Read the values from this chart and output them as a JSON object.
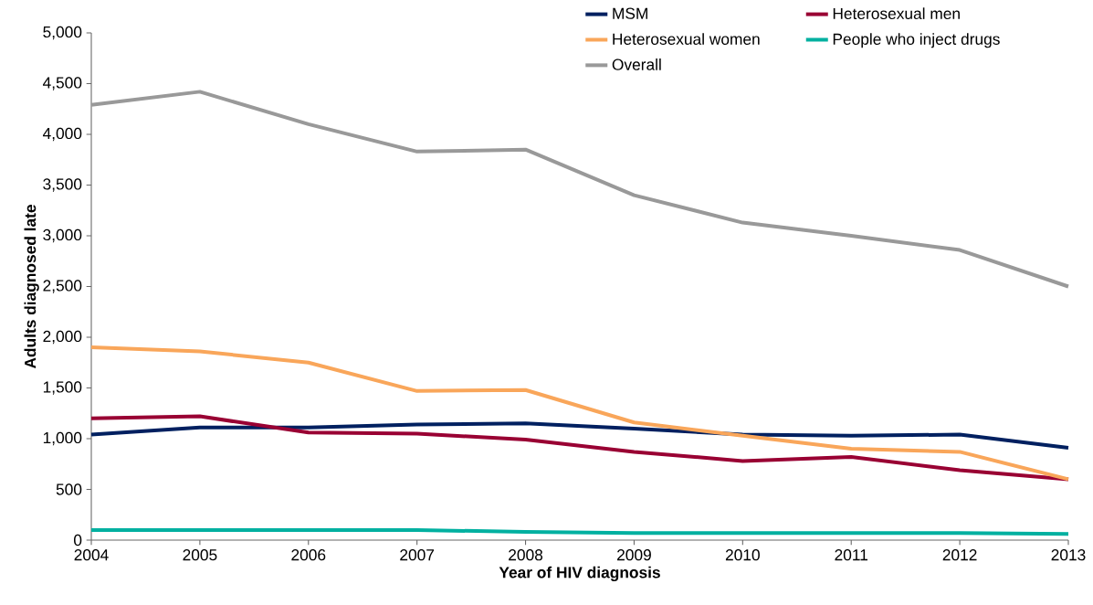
{
  "chart_data": {
    "type": "line",
    "xlabel": "Year of HIV diagnosis",
    "ylabel": "Adults diagnosed late",
    "x": [
      2004,
      2005,
      2006,
      2007,
      2008,
      2009,
      2010,
      2011,
      2012,
      2013
    ],
    "series": [
      {
        "name": "MSM",
        "color": "#002060",
        "values": [
          1040,
          1110,
          1110,
          1140,
          1150,
          1100,
          1040,
          1030,
          1040,
          910
        ]
      },
      {
        "name": "Heterosexual men",
        "color": "#990033",
        "values": [
          1200,
          1220,
          1060,
          1050,
          990,
          870,
          780,
          820,
          690,
          600
        ]
      },
      {
        "name": "Heterosexual women",
        "color": "#f9a65a",
        "values": [
          1900,
          1860,
          1750,
          1470,
          1480,
          1160,
          1030,
          900,
          870,
          600
        ]
      },
      {
        "name": "People who inject drugs",
        "color": "#00b0a0",
        "values": [
          100,
          100,
          100,
          100,
          80,
          70,
          70,
          70,
          70,
          60
        ]
      },
      {
        "name": "Overall",
        "color": "#999999",
        "values": [
          4290,
          4420,
          4100,
          3830,
          3850,
          3400,
          3130,
          3000,
          2860,
          2500
        ]
      }
    ],
    "xlim": [
      2004,
      2013
    ],
    "xticks": [
      2004,
      2005,
      2006,
      2007,
      2008,
      2009,
      2010,
      2011,
      2012,
      2013
    ],
    "ylim": [
      0,
      5000
    ],
    "yticks": [
      {
        "value": 0,
        "label": "0"
      },
      {
        "value": 500,
        "label": "500"
      },
      {
        "value": 1000,
        "label": "1,000"
      },
      {
        "value": 1500,
        "label": "1,500"
      },
      {
        "value": 2000,
        "label": "2,000"
      },
      {
        "value": 2500,
        "label": "2,500"
      },
      {
        "value": 3000,
        "label": "3,000"
      },
      {
        "value": 3500,
        "label": "3,500"
      },
      {
        "value": 4000,
        "label": "4,000"
      },
      {
        "value": 4500,
        "label": "4,500"
      },
      {
        "value": 5000,
        "label": "5,000"
      }
    ],
    "legend": "top right",
    "marker": "none",
    "line_style": "solid"
  }
}
